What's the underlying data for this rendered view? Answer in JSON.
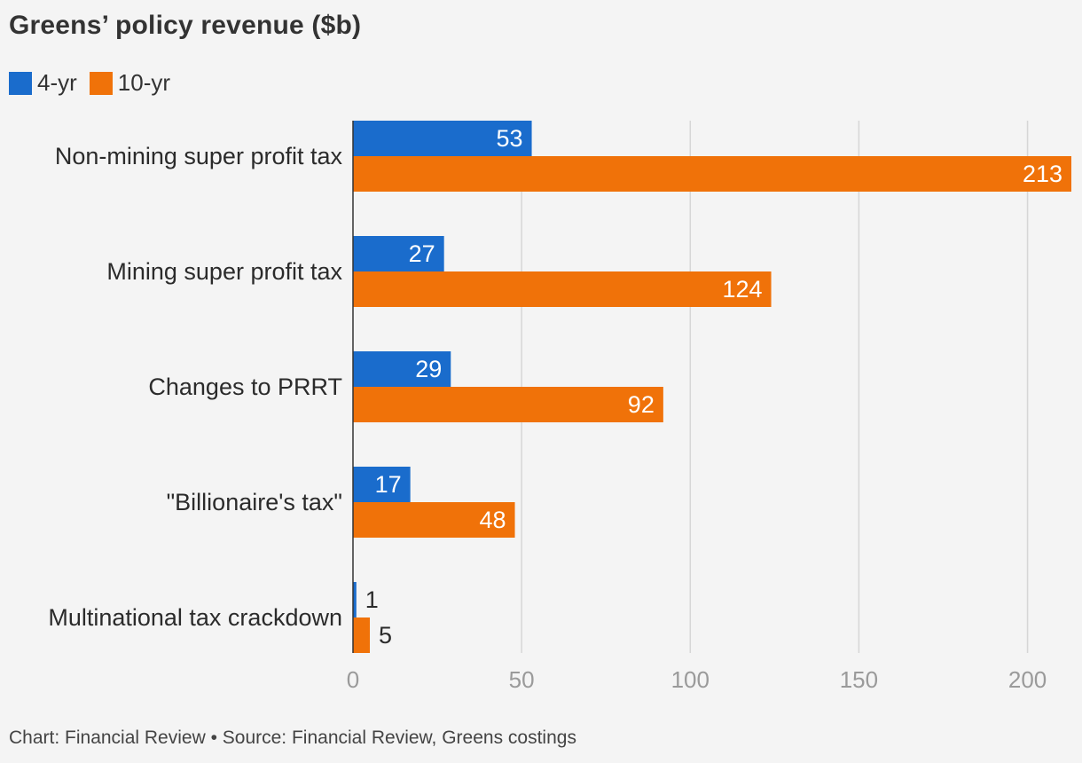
{
  "title": "Greens’ policy revenue ($b)",
  "legend": [
    {
      "label": "4-yr",
      "color": "#1a6ccc"
    },
    {
      "label": "10-yr",
      "color": "#f07209"
    }
  ],
  "footer": "Chart: Financial Review • Source: Financial Review, Greens costings",
  "chart_data": {
    "type": "bar",
    "orientation": "horizontal",
    "categories": [
      "Non-mining super profit tax",
      "Mining super profit tax",
      "Changes to PRRT",
      "\"Billionaire's tax\"",
      "Multinational tax crackdown"
    ],
    "series": [
      {
        "name": "4-yr",
        "values": [
          53,
          27,
          29,
          17,
          1
        ],
        "color": "#1a6ccc"
      },
      {
        "name": "10-yr",
        "values": [
          213,
          124,
          92,
          48,
          5
        ],
        "color": "#f07209"
      }
    ],
    "xlim": [
      0,
      213
    ],
    "xticks": [
      0,
      50,
      100,
      150,
      200
    ],
    "grid": true
  }
}
